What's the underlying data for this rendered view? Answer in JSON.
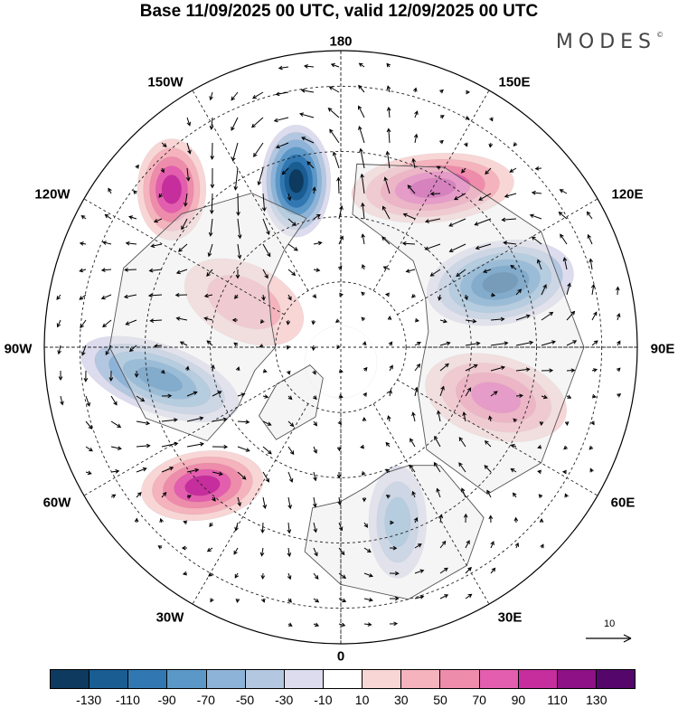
{
  "title": "Base 11/09/2025 00 UTC, valid 12/09/2025 00 UTC",
  "brand": "MODES",
  "brand_mark": "©",
  "longitude_labels": {
    "lon_180": "180",
    "lon_150e": "150E",
    "lon_120e": "120E",
    "lon_90e": "90E",
    "lon_60e": "60E",
    "lon_30e": "30E",
    "lon_0": "0",
    "lon_30w": "30W",
    "lon_60w": "60W",
    "lon_90w": "90W",
    "lon_120w": "120W",
    "lon_150w": "150W"
  },
  "reference_vector": {
    "label": "10"
  },
  "colorbar": {
    "colors": [
      "#0d3a5e",
      "#1a5d93",
      "#3178b3",
      "#5b98c8",
      "#8db4d8",
      "#b4c7e0",
      "#dcdcee",
      "#ffffff",
      "#f8d6d6",
      "#f4b3bd",
      "#ee8cab",
      "#e35eae",
      "#c52e9c",
      "#8e1185",
      "#54066a"
    ],
    "ticks": [
      "-130",
      "-110",
      "-90",
      "-70",
      "-50",
      "-30",
      "-10",
      "10",
      "30",
      "50",
      "70",
      "90",
      "110",
      "130"
    ]
  },
  "anomaly_centers": [
    {
      "name": "n-pacific-low",
      "lon": -165,
      "colat": 0.58,
      "value": -130
    },
    {
      "name": "e-siberia-high",
      "lon": 150,
      "colat": 0.62,
      "value": 90
    },
    {
      "name": "ne-asia-low",
      "lon": 112,
      "colat": 0.58,
      "value": -110
    },
    {
      "name": "c-siberia-high",
      "lon": 72,
      "colat": 0.55,
      "value": 80
    },
    {
      "name": "scandinavia-low",
      "lon": 18,
      "colat": 0.62,
      "value": -60
    },
    {
      "name": "n-atlantic-high",
      "lon": -45,
      "colat": 0.66,
      "value": 90
    },
    {
      "name": "canada-low",
      "lon": -80,
      "colat": 0.62,
      "value": -90
    },
    {
      "name": "w-canada-high",
      "lon": -115,
      "colat": 0.36,
      "value": 30
    },
    {
      "name": "ne-pacific-high",
      "lon": -133,
      "colat": 0.78,
      "value": 90
    },
    {
      "name": "pole-neutral",
      "lon": 0,
      "colat": 0.05,
      "value": 0
    }
  ]
}
